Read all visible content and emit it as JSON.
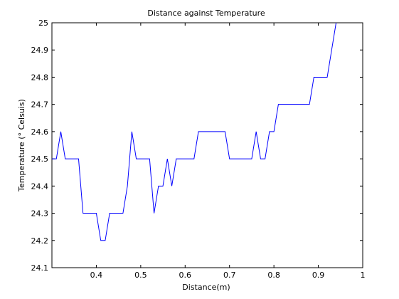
{
  "chart_data": {
    "type": "line",
    "title": "Distance against Temperature",
    "xlabel": "Distance(m)",
    "ylabel": "Temperature (° Celsuis)",
    "xlim": [
      0.3,
      1.0
    ],
    "ylim": [
      24.1,
      25.0
    ],
    "grid": false,
    "x_ticks": [
      "0.4",
      "0.5",
      "0.6",
      "0.7",
      "0.8",
      "0.9",
      "1"
    ],
    "y_ticks": [
      "24.1",
      "24.2",
      "24.3",
      "24.4",
      "24.5",
      "24.6",
      "24.7",
      "24.8",
      "24.9",
      "25"
    ],
    "series": [
      {
        "color": "#0000ff",
        "x": [
          0.3,
          0.31,
          0.32,
          0.33,
          0.34,
          0.35,
          0.36,
          0.37,
          0.38,
          0.39,
          0.4,
          0.41,
          0.42,
          0.43,
          0.44,
          0.45,
          0.46,
          0.47,
          0.48,
          0.49,
          0.5,
          0.51,
          0.52,
          0.53,
          0.54,
          0.55,
          0.56,
          0.57,
          0.58,
          0.59,
          0.6,
          0.61,
          0.62,
          0.63,
          0.64,
          0.65,
          0.66,
          0.67,
          0.68,
          0.69,
          0.7,
          0.71,
          0.72,
          0.73,
          0.74,
          0.75,
          0.76,
          0.77,
          0.78,
          0.79,
          0.8,
          0.81,
          0.82,
          0.83,
          0.84,
          0.85,
          0.86,
          0.87,
          0.88,
          0.89,
          0.9,
          0.91,
          0.92,
          0.93,
          0.94
        ],
        "y": [
          24.5,
          24.5,
          24.6,
          24.5,
          24.5,
          24.5,
          24.5,
          24.3,
          24.3,
          24.3,
          24.3,
          24.2,
          24.2,
          24.3,
          24.3,
          24.3,
          24.3,
          24.4,
          24.6,
          24.5,
          24.5,
          24.5,
          24.5,
          24.3,
          24.4,
          24.4,
          24.5,
          24.4,
          24.5,
          24.5,
          24.5,
          24.5,
          24.5,
          24.6,
          24.6,
          24.6,
          24.6,
          24.6,
          24.6,
          24.6,
          24.5,
          24.5,
          24.5,
          24.5,
          24.5,
          24.5,
          24.6,
          24.5,
          24.5,
          24.6,
          24.6,
          24.7,
          24.7,
          24.7,
          24.7,
          24.7,
          24.7,
          24.7,
          24.7,
          24.8,
          24.8,
          24.8,
          24.8,
          24.9,
          25.0
        ]
      }
    ]
  }
}
